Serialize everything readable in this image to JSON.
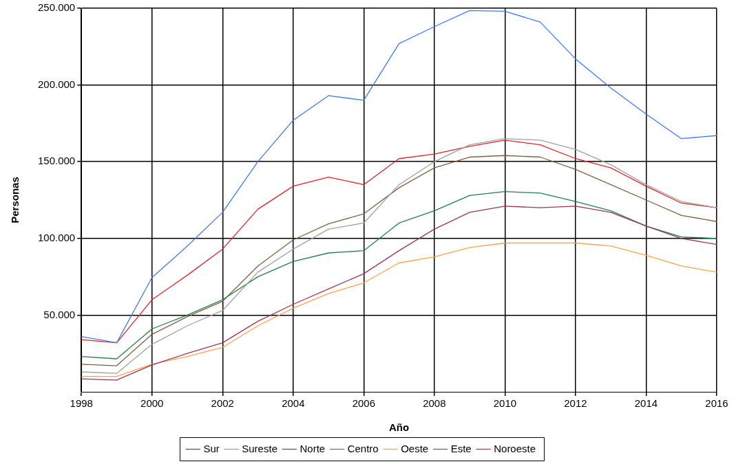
{
  "chart_data": {
    "type": "line",
    "xlabel": "Año",
    "ylabel": "Personas",
    "x": [
      1998,
      1999,
      2000,
      2001,
      2002,
      2003,
      2004,
      2005,
      2006,
      2007,
      2008,
      2009,
      2010,
      2011,
      2012,
      2013,
      2014,
      2015,
      2016
    ],
    "xlim": [
      1998,
      2016
    ],
    "xticks": [
      1998,
      2000,
      2002,
      2004,
      2006,
      2008,
      2010,
      2012,
      2014,
      2016
    ],
    "ylim": [
      0,
      250000
    ],
    "yticks": [
      {
        "value": 50000,
        "label": "50.000"
      },
      {
        "value": 100000,
        "label": "100.000"
      },
      {
        "value": 150000,
        "label": "150.000"
      },
      {
        "value": 200000,
        "label": "200.000"
      },
      {
        "value": 250000,
        "label": "250.000"
      }
    ],
    "grid": true,
    "legend": "bottom",
    "marker": "none",
    "line_style": "solid",
    "series": [
      {
        "name": "Sur",
        "color": "#a0325a",
        "values": [
          8500,
          7700,
          17500,
          25000,
          32000,
          46000,
          57000,
          67000,
          77000,
          92000,
          106000,
          117000,
          121000,
          120000,
          121000,
          117000,
          108000,
          100000,
          96000
        ]
      },
      {
        "name": "Sureste",
        "color": "#a0a0a0",
        "values": [
          13000,
          12000,
          31000,
          43000,
          53000,
          78000,
          93000,
          106000,
          110000,
          135000,
          150000,
          161000,
          165000,
          164000,
          158000,
          148000,
          135000,
          124000,
          120000
        ]
      },
      {
        "name": "Norte",
        "color": "#1e8246",
        "values": [
          23000,
          21500,
          41000,
          50000,
          60000,
          75000,
          85000,
          90500,
          92000,
          110000,
          118000,
          128000,
          130500,
          129500,
          124000,
          118000,
          108000,
          101000,
          100000
        ]
      },
      {
        "name": "Centro",
        "color": "#3c78ff",
        "values": [
          36000,
          32000,
          74500,
          95000,
          117000,
          150000,
          177000,
          193000,
          190000,
          227000,
          238000,
          248500,
          248000,
          241000,
          217000,
          198000,
          181000,
          165000,
          167000
        ]
      },
      {
        "name": "Oeste",
        "color": "#ffa040",
        "values": [
          10000,
          10000,
          18000,
          23000,
          29000,
          43000,
          54500,
          64000,
          71000,
          84000,
          88000,
          94000,
          97000,
          97000,
          97000,
          95000,
          89000,
          82000,
          78000
        ]
      },
      {
        "name": "Este",
        "color": "#80603c",
        "values": [
          18000,
          17000,
          37500,
          49000,
          59000,
          82000,
          99000,
          109500,
          116000,
          133000,
          146000,
          153000,
          154000,
          153000,
          145000,
          135000,
          125000,
          115000,
          111000
        ]
      },
      {
        "name": "Noroeste",
        "color": "#e62020",
        "values": [
          34000,
          32000,
          60000,
          76000,
          93000,
          119000,
          134000,
          140000,
          135000,
          152000,
          155000,
          160000,
          164000,
          161000,
          152000,
          146000,
          134000,
          123000,
          120000
        ]
      }
    ]
  }
}
